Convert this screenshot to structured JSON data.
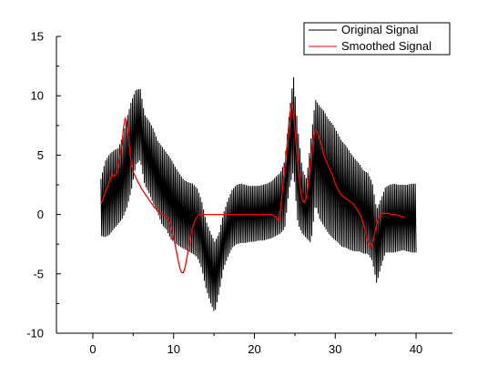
{
  "chart_data": {
    "type": "line",
    "title": "",
    "xlabel": "",
    "ylabel": "",
    "xlim": [
      -4.5,
      44.5
    ],
    "ylim": [
      -10,
      15
    ],
    "x_ticks": [
      0,
      10,
      20,
      30,
      40
    ],
    "y_ticks": [
      -10,
      -5,
      0,
      5,
      10,
      15
    ],
    "x_tick_labels": [
      "0",
      "10",
      "20",
      "30",
      "40"
    ],
    "y_tick_labels": [
      "-10",
      "-5",
      "0",
      "5",
      "10",
      "15"
    ],
    "grid": false,
    "legend_position": "top-right",
    "x_start": 1,
    "x_step": 0.2,
    "series": [
      {
        "name": "Original Signal",
        "color": "#000000",
        "envelope_lower": [
          -1.8,
          -1.9,
          -1.7,
          -1.2,
          -0.8,
          -0.3,
          0.6,
          2.1,
          4.2,
          4.6,
          2.5,
          1.8,
          0.9,
          0.1,
          -0.9,
          -1.3,
          -2.1,
          -2.4,
          -2.7,
          -2.9,
          -3.1,
          -3.3,
          -3.6,
          -4.5,
          -6.2,
          -7.4,
          -8.3,
          -6.6,
          -4.6,
          -3.6,
          -2.8,
          -2.5,
          -2.4,
          -2.4,
          -2.3,
          -2.3,
          -2.2,
          -2.2,
          -2.1,
          -2.0,
          -1.8,
          -1.6,
          -1.2,
          2.1,
          3.7,
          -0.8,
          -1.6,
          -2.0,
          -2.4,
          0.9,
          -0.4,
          -1.0,
          -1.6,
          -2.0,
          -2.3,
          -2.7,
          -2.8,
          -3.0,
          -3.1,
          -3.1,
          -3.3,
          -3.3,
          -3.9,
          -5.8,
          -4.4,
          -3.2,
          -3.2,
          -3.2,
          -3.1,
          -3.0,
          -3.1,
          -3.2,
          -3.2
        ],
        "envelope_upper": [
          3.0,
          4.5,
          5.1,
          5.4,
          5.6,
          6.6,
          8.2,
          9.6,
          10.5,
          10.6,
          8.4,
          7.9,
          7.2,
          6.2,
          5.7,
          5.2,
          4.7,
          4.0,
          3.4,
          2.9,
          2.7,
          2.6,
          2.2,
          1.2,
          -0.5,
          -1.5,
          -2.3,
          -1.6,
          0.1,
          1.2,
          2.1,
          2.5,
          2.6,
          2.5,
          2.4,
          2.4,
          2.4,
          2.5,
          2.6,
          2.8,
          3.2,
          3.5,
          4.5,
          8.4,
          11.7,
          7.2,
          3.8,
          3.0,
          6.4,
          9.7,
          9.1,
          8.7,
          8.0,
          7.6,
          6.9,
          6.2,
          5.8,
          5.2,
          4.7,
          4.3,
          3.7,
          3.5,
          2.7,
          0.4,
          1.3,
          2.3,
          2.5,
          2.6,
          2.5,
          2.5,
          2.5,
          2.6,
          2.6
        ]
      },
      {
        "name": "Smoothed Signal",
        "color": "#ff0000",
        "values": [
          0.9,
          1.2,
          1.6,
          2.0,
          2.3,
          2.7,
          3.1,
          3.4,
          3.2,
          3.3,
          3.6,
          4.2,
          5.0,
          6.0,
          7.3,
          8.1,
          7.8,
          6.7,
          5.2,
          4.1,
          3.6,
          3.3,
          3.0,
          2.7,
          2.5,
          2.2,
          2.0,
          1.8,
          1.6,
          1.4,
          1.2,
          1.0,
          0.8,
          0.6,
          0.5,
          0.3,
          0.2,
          0.1,
          0.0,
          -0.1,
          -0.2,
          -0.3,
          -0.5,
          -0.9,
          -1.4,
          -2.0,
          -2.6,
          -3.3,
          -4.0,
          -4.6,
          -4.9,
          -4.9,
          -4.5,
          -3.8,
          -3.0,
          -2.2,
          -1.5,
          -1.0,
          -0.6,
          -0.3,
          -0.1,
          0.0,
          0.0,
          0.0,
          0.0,
          0.0,
          0.0,
          0.0,
          0.0,
          0.0,
          0.0,
          0.0,
          0.0,
          0.0,
          0.0,
          0.0,
          0.0,
          0.0,
          0.0,
          0.0,
          0.0,
          0.0,
          0.0,
          0.0,
          0.0,
          0.0,
          0.0,
          0.0,
          0.0,
          0.0,
          0.0,
          0.0,
          0.0,
          0.0,
          0.0,
          0.0,
          0.0,
          0.0,
          0.0,
          0.0,
          0.0,
          0.0,
          0.0,
          0.0,
          0.0,
          0.0,
          0.0,
          -0.1,
          -0.2,
          -0.4,
          -0.5,
          0.3,
          1.6,
          3.0,
          4.2,
          5.6,
          7.2,
          8.6,
          9.3,
          8.7,
          7.2,
          5.5,
          3.9,
          2.6,
          1.6,
          1.1,
          1.0,
          1.4,
          2.3,
          3.6,
          5.0,
          6.1,
          6.9,
          7.1,
          6.9,
          6.5,
          6.0,
          5.5,
          5.0,
          4.6,
          4.3,
          4.0,
          3.7,
          3.4,
          3.0,
          2.6,
          2.3,
          2.0,
          1.8,
          1.6,
          1.5,
          1.4,
          1.3,
          1.2,
          1.1,
          1.0,
          0.9,
          0.7,
          0.5,
          0.3,
          0.1,
          -0.2,
          -0.6,
          -1.1,
          -1.7,
          -2.3,
          -2.7,
          -2.8,
          -2.5,
          -1.9,
          -1.2,
          -0.6,
          -0.2,
          0.0,
          0.1,
          0.1,
          0.1,
          0.1,
          0.1,
          0.0,
          0.0,
          0.0,
          0.0,
          0.0,
          -0.1,
          -0.1,
          -0.2,
          -0.2,
          -0.3
        ]
      }
    ]
  }
}
